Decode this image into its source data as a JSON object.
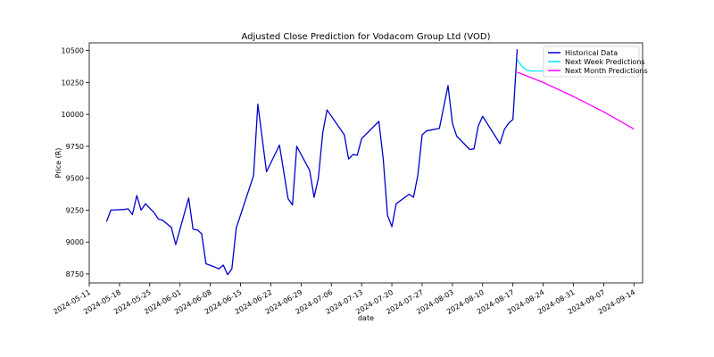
{
  "chart_data": {
    "type": "line",
    "title": "Adjusted Close Prediction for Vodacom Group Ltd (VOD)",
    "xlabel": "date",
    "ylabel": "Price (R)",
    "xlim": [
      "2024-05-11",
      "2024-09-16"
    ],
    "ylim": [
      8680,
      10560
    ],
    "x_ticks": [
      "2024-05-11",
      "2024-05-18",
      "2024-05-25",
      "2024-06-01",
      "2024-06-08",
      "2024-06-15",
      "2024-06-22",
      "2024-06-29",
      "2024-07-06",
      "2024-07-13",
      "2024-07-20",
      "2024-07-27",
      "2024-08-03",
      "2024-08-10",
      "2024-08-17",
      "2024-08-24",
      "2024-08-31",
      "2024-09-07",
      "2024-09-14"
    ],
    "y_ticks": [
      8750,
      9000,
      9250,
      9500,
      9750,
      10000,
      10250,
      10500
    ],
    "grid": false,
    "legend": "top-right",
    "series": [
      {
        "name": "Historical Data",
        "color": "#0000cd",
        "points": [
          [
            "2024-05-15",
            9160
          ],
          [
            "2024-05-16",
            9250
          ],
          [
            "2024-05-19",
            9255
          ],
          [
            "2024-05-20",
            9260
          ],
          [
            "2024-05-21",
            9215
          ],
          [
            "2024-05-22",
            9365
          ],
          [
            "2024-05-23",
            9250
          ],
          [
            "2024-05-24",
            9300
          ],
          [
            "2024-05-26",
            9230
          ],
          [
            "2024-05-27",
            9180
          ],
          [
            "2024-05-28",
            9170
          ],
          [
            "2024-05-30",
            9115
          ],
          [
            "2024-05-31",
            8980
          ],
          [
            "2024-06-03",
            9345
          ],
          [
            "2024-06-04",
            9100
          ],
          [
            "2024-06-05",
            9095
          ],
          [
            "2024-06-06",
            9065
          ],
          [
            "2024-06-07",
            8830
          ],
          [
            "2024-06-09",
            8805
          ],
          [
            "2024-06-10",
            8790
          ],
          [
            "2024-06-11",
            8820
          ],
          [
            "2024-06-12",
            8745
          ],
          [
            "2024-06-13",
            8790
          ],
          [
            "2024-06-14",
            9110
          ],
          [
            "2024-06-18",
            9520
          ],
          [
            "2024-06-19",
            10080
          ],
          [
            "2024-06-21",
            9550
          ],
          [
            "2024-06-24",
            9760
          ],
          [
            "2024-06-26",
            9340
          ],
          [
            "2024-06-27",
            9290
          ],
          [
            "2024-06-28",
            9750
          ],
          [
            "2024-07-01",
            9560
          ],
          [
            "2024-07-02",
            9350
          ],
          [
            "2024-07-03",
            9500
          ],
          [
            "2024-07-04",
            9855
          ],
          [
            "2024-07-05",
            10035
          ],
          [
            "2024-07-09",
            9840
          ],
          [
            "2024-07-10",
            9650
          ],
          [
            "2024-07-11",
            9685
          ],
          [
            "2024-07-12",
            9680
          ],
          [
            "2024-07-13",
            9810
          ],
          [
            "2024-07-17",
            9945
          ],
          [
            "2024-07-18",
            9650
          ],
          [
            "2024-07-19",
            9210
          ],
          [
            "2024-07-20",
            9120
          ],
          [
            "2024-07-21",
            9300
          ],
          [
            "2024-07-24",
            9375
          ],
          [
            "2024-07-25",
            9350
          ],
          [
            "2024-07-26",
            9520
          ],
          [
            "2024-07-27",
            9840
          ],
          [
            "2024-07-28",
            9870
          ],
          [
            "2024-07-31",
            9890
          ],
          [
            "2024-08-02",
            10225
          ],
          [
            "2024-08-03",
            9930
          ],
          [
            "2024-08-04",
            9830
          ],
          [
            "2024-08-07",
            9725
          ],
          [
            "2024-08-08",
            9730
          ],
          [
            "2024-08-09",
            9910
          ],
          [
            "2024-08-10",
            9985
          ],
          [
            "2024-08-14",
            9770
          ],
          [
            "2024-08-15",
            9880
          ],
          [
            "2024-08-16",
            9930
          ],
          [
            "2024-08-17",
            9960
          ],
          [
            "2024-08-18",
            10510
          ]
        ]
      },
      {
        "name": "Next Week Predictions",
        "color": "#00e5ff",
        "points": [
          [
            "2024-08-18",
            10430
          ],
          [
            "2024-08-19",
            10380
          ],
          [
            "2024-08-20",
            10350
          ],
          [
            "2024-08-21",
            10340
          ],
          [
            "2024-08-22",
            10340
          ],
          [
            "2024-08-23",
            10340
          ],
          [
            "2024-08-24",
            10340
          ]
        ]
      },
      {
        "name": "Next Month Predictions",
        "color": "#ff00ff",
        "points": [
          [
            "2024-08-18",
            10330
          ],
          [
            "2024-08-24",
            10250
          ],
          [
            "2024-08-31",
            10140
          ],
          [
            "2024-09-07",
            10020
          ],
          [
            "2024-09-14",
            9885
          ]
        ]
      }
    ]
  }
}
